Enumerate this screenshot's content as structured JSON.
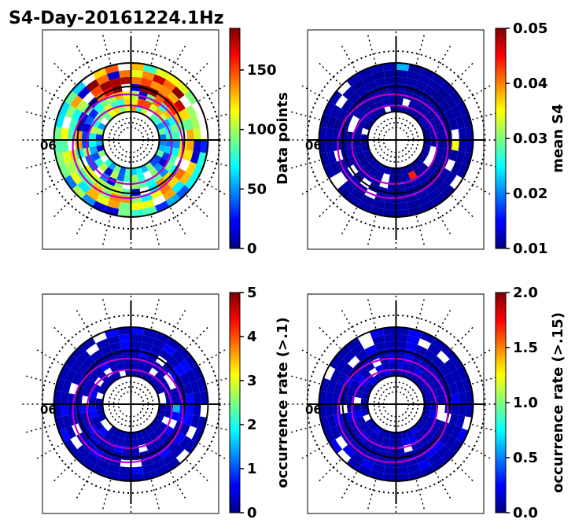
{
  "title": "S4-Day-20161224.1Hz",
  "chart_data": [
    {
      "type": "heatmap",
      "projection": "polar",
      "panel": "top-left",
      "colorbar": {
        "label": "Data points",
        "range": [
          0,
          185
        ],
        "ticks": [
          0,
          50,
          100,
          150
        ],
        "tick_labels": [
          "0",
          "50",
          "100",
          "150"
        ]
      },
      "partial_tick_label": "06"
    },
    {
      "type": "heatmap",
      "projection": "polar",
      "panel": "top-right",
      "colorbar": {
        "label": "mean S4",
        "range": [
          0.01,
          0.05
        ],
        "ticks": [
          0.01,
          0.02,
          0.03,
          0.04,
          0.05
        ],
        "tick_labels": [
          "0.01",
          "0.02",
          "0.03",
          "0.04",
          "0.05"
        ]
      },
      "partial_tick_label": "06"
    },
    {
      "type": "heatmap",
      "projection": "polar",
      "panel": "bottom-left",
      "colorbar": {
        "label": "occurrence rate (>.1)",
        "range": [
          0,
          5
        ],
        "ticks": [
          0,
          1,
          2,
          3,
          4,
          5
        ],
        "tick_labels": [
          "0",
          "1",
          "2",
          "3",
          "4",
          "5"
        ]
      },
      "partial_tick_label": "06"
    },
    {
      "type": "heatmap",
      "projection": "polar",
      "panel": "bottom-right",
      "colorbar": {
        "label": "occurrence rate (>.15)",
        "range": [
          0,
          2
        ],
        "ticks": [
          0,
          0.5,
          1,
          1.5,
          2
        ],
        "tick_labels": [
          "0.0",
          "0.5",
          "1.0",
          "1.5",
          "2.0"
        ]
      },
      "partial_tick_label": "06"
    }
  ]
}
